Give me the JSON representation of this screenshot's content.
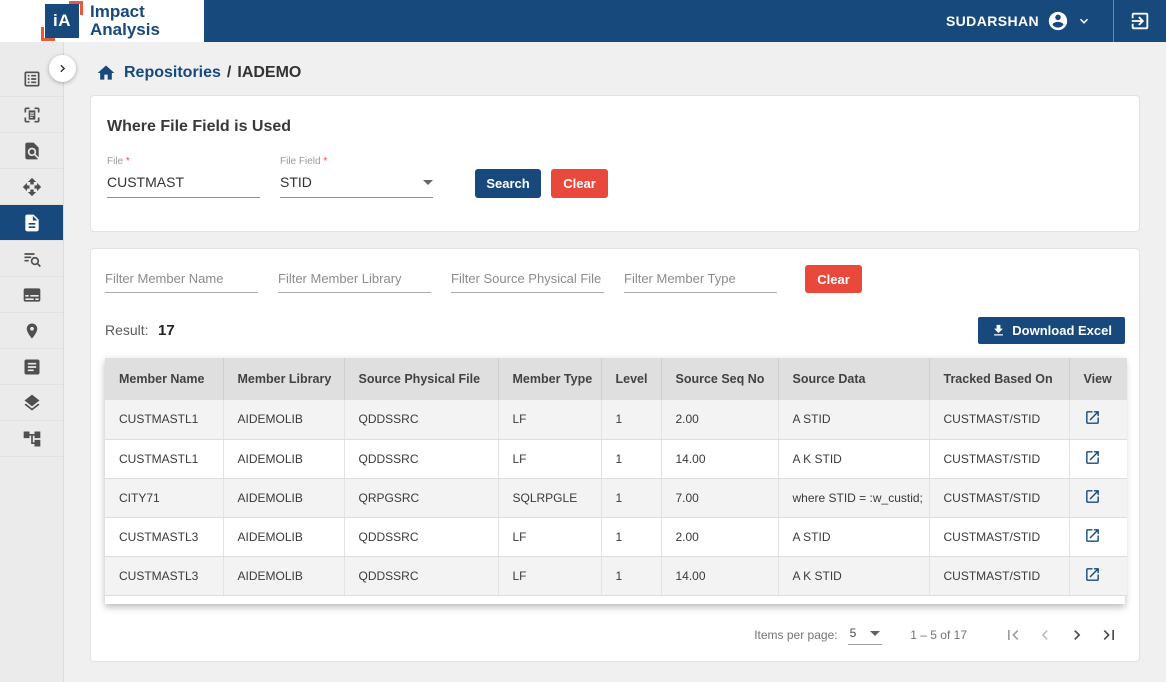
{
  "header": {
    "logo_mark": "iA",
    "brand_line1": "Impact",
    "brand_line2": "Analysis",
    "user_name": "SUDARSHAN"
  },
  "sidebar": {
    "items": [
      {
        "icon": "list-alt-icon",
        "active": false
      },
      {
        "icon": "scan-document-icon",
        "active": false
      },
      {
        "icon": "document-search-icon",
        "active": false
      },
      {
        "icon": "move-icon",
        "active": false
      },
      {
        "icon": "document-icon",
        "active": true
      },
      {
        "icon": "search-list-icon",
        "active": false
      },
      {
        "icon": "card-icon",
        "active": false
      },
      {
        "icon": "location-pin-icon",
        "active": false
      },
      {
        "icon": "article-icon",
        "active": false
      },
      {
        "icon": "layers-icon",
        "active": false
      },
      {
        "icon": "tree-icon",
        "active": false
      }
    ]
  },
  "breadcrumb": {
    "root": "Repositories",
    "separator": "/",
    "current": "IADEMO"
  },
  "search_panel": {
    "title": "Where File Field is Used",
    "file_label": "File",
    "file_required": "*",
    "file_value": "CUSTMAST",
    "file_field_label": "File Field",
    "file_field_required": "*",
    "file_field_value": "STID",
    "search_label": "Search",
    "clear_label": "Clear"
  },
  "results_panel": {
    "filters": [
      {
        "placeholder": "Filter Member Name"
      },
      {
        "placeholder": "Filter Member Library"
      },
      {
        "placeholder": "Filter Source Physical File"
      },
      {
        "placeholder": "Filter Member Type"
      }
    ],
    "clear_label": "Clear",
    "result_label": "Result:",
    "result_count": "17",
    "download_label": "Download Excel",
    "table": {
      "columns": [
        "Member Name",
        "Member Library",
        "Source Physical File",
        "Member Type",
        "Level",
        "Source Seq No",
        "Source Data",
        "Tracked Based On",
        "View"
      ],
      "rows": [
        [
          "CUSTMASTL1",
          "AIDEMOLIB",
          "QDDSSRC",
          "LF",
          "1",
          "2.00",
          "A STID",
          "CUSTMAST/STID"
        ],
        [
          "CUSTMASTL1",
          "AIDEMOLIB",
          "QDDSSRC",
          "LF",
          "1",
          "14.00",
          "A K STID",
          "CUSTMAST/STID"
        ],
        [
          "CITY71",
          "AIDEMOLIB",
          "QRPGSRC",
          "SQLRPGLE",
          "1",
          "7.00",
          "where STID = :w_custid;",
          "CUSTMAST/STID"
        ],
        [
          "CUSTMASTL3",
          "AIDEMOLIB",
          "QDDSSRC",
          "LF",
          "1",
          "2.00",
          "A STID",
          "CUSTMAST/STID"
        ],
        [
          "CUSTMASTL3",
          "AIDEMOLIB",
          "QDDSSRC",
          "LF",
          "1",
          "14.00",
          "A K STID",
          "CUSTMAST/STID"
        ]
      ]
    },
    "pagination": {
      "items_per_page_label": "Items per page:",
      "items_per_page_value": "5",
      "range_label": "1 – 5 of 17"
    }
  },
  "colors": {
    "navy": "#17497D",
    "red": "#E8493C",
    "orange": "#E8573F"
  }
}
